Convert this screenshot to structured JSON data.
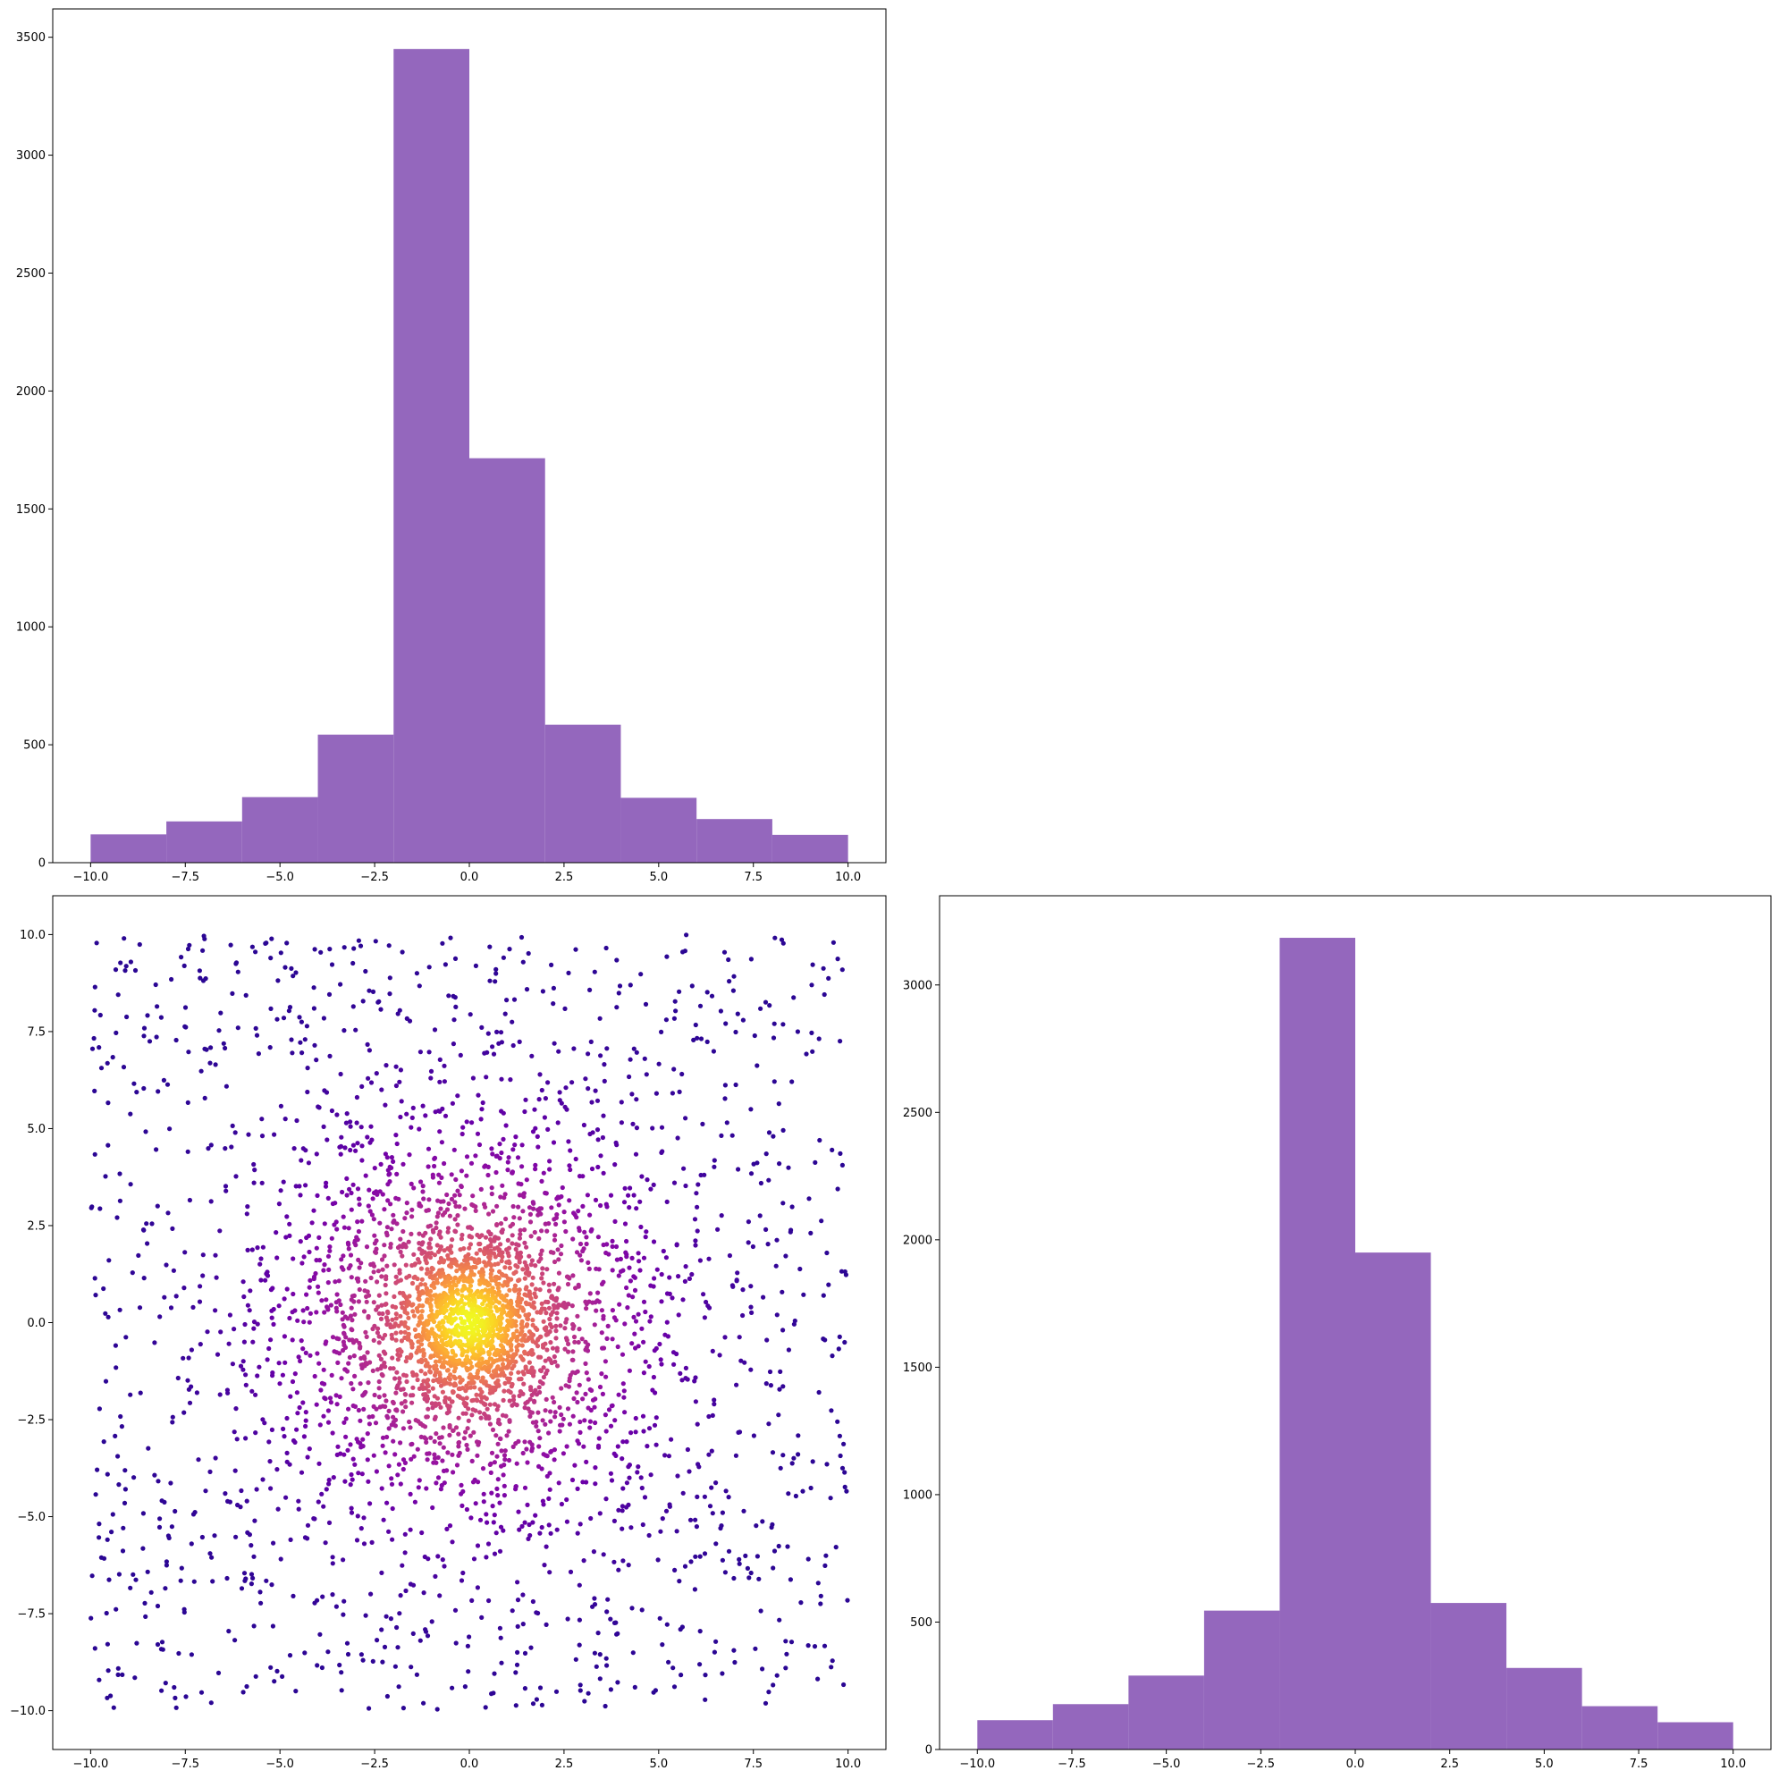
{
  "chart_data": [
    {
      "type": "bar",
      "panel": "top-left",
      "title": "",
      "xlabel": "",
      "ylabel": "",
      "xlim": [
        -11,
        11
      ],
      "ylim": [
        0,
        3620
      ],
      "bin_edges": [
        -10,
        -8,
        -6,
        -4,
        -2,
        0,
        2,
        4,
        6,
        8,
        10
      ],
      "values": [
        120,
        175,
        278,
        543,
        3450,
        1715,
        585,
        275,
        185,
        118
      ],
      "color": "#9467bd",
      "xticks": [
        -10,
        -7.5,
        -5,
        -2.5,
        0,
        2.5,
        5,
        7.5,
        10
      ],
      "xtick_labels": [
        "−10.0",
        "−7.5",
        "−5.0",
        "−2.5",
        "0.0",
        "2.5",
        "5.0",
        "7.5",
        "10.0"
      ],
      "yticks": [
        0,
        500,
        1000,
        1500,
        2000,
        2500,
        3000,
        3500
      ],
      "ytick_labels": [
        "0",
        "500",
        "1000",
        "1500",
        "2000",
        "2500",
        "3000",
        "3500"
      ]
    },
    {
      "type": "scatter",
      "panel": "bottom-left",
      "title": "",
      "xlabel": "",
      "ylabel": "",
      "xlim": [
        -11,
        11
      ],
      "ylim": [
        -11,
        11
      ],
      "n_points": 4000,
      "colormap": "plasma",
      "color_by": "density",
      "xticks": [
        -10,
        -7.5,
        -5,
        -2.5,
        0,
        2.5,
        5,
        7.5,
        10
      ],
      "xtick_labels": [
        "−10.0",
        "−7.5",
        "−5.0",
        "−2.5",
        "0.0",
        "2.5",
        "5.0",
        "7.5",
        "10.0"
      ],
      "yticks": [
        -10,
        -7.5,
        -5,
        -2.5,
        0,
        2.5,
        5,
        7.5,
        10
      ],
      "ytick_labels": [
        "−10.0",
        "−7.5",
        "−5.0",
        "−2.5",
        "0.0",
        "2.5",
        "5.0",
        "7.5",
        "10.0"
      ]
    },
    {
      "type": "bar",
      "panel": "bottom-right",
      "title": "",
      "xlabel": "",
      "ylabel": "",
      "xlim": [
        -11,
        11
      ],
      "ylim": [
        0,
        3350
      ],
      "bin_edges": [
        -10,
        -8,
        -6,
        -4,
        -2,
        0,
        2,
        4,
        6,
        8,
        10
      ],
      "values": [
        115,
        178,
        290,
        545,
        3185,
        1950,
        575,
        320,
        170,
        107
      ],
      "color": "#9467bd",
      "xticks": [
        -10,
        -7.5,
        -5,
        -2.5,
        0,
        2.5,
        5,
        7.5,
        10
      ],
      "xtick_labels": [
        "−10.0",
        "−7.5",
        "−5.0",
        "−2.5",
        "0.0",
        "2.5",
        "5.0",
        "7.5",
        "10.0"
      ],
      "yticks": [
        0,
        500,
        1000,
        1500,
        2000,
        2500,
        3000
      ],
      "ytick_labels": [
        "0",
        "500",
        "1000",
        "1500",
        "2000",
        "2500",
        "3000"
      ]
    }
  ]
}
